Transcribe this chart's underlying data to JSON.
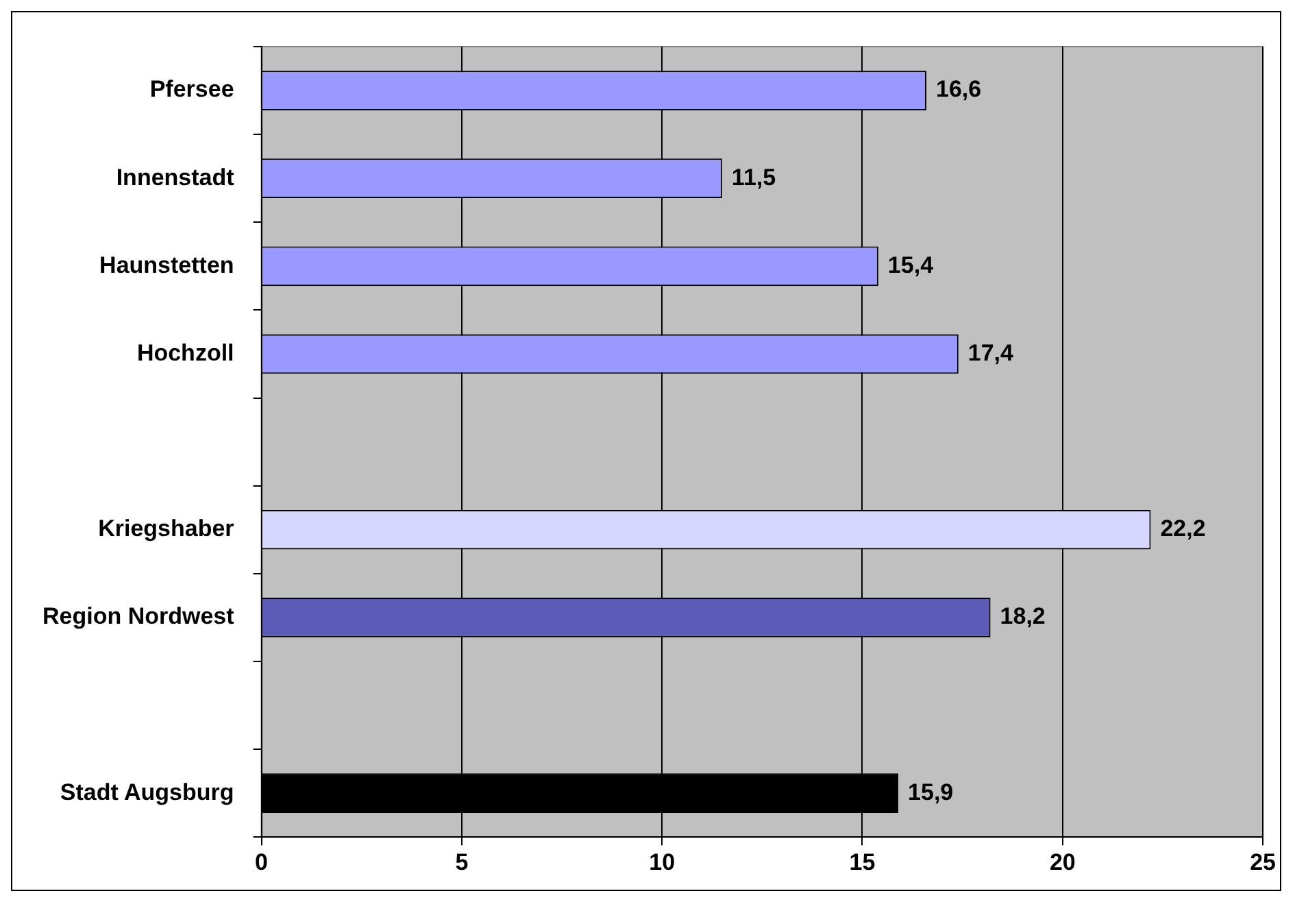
{
  "chart_data": {
    "type": "bar",
    "orientation": "horizontal",
    "categories": [
      "Pfersee",
      "Innenstadt",
      "Haunstetten",
      "Hochzoll",
      null,
      "Kriegshaber",
      "Region Nordwest",
      null,
      "Stadt Augsburg"
    ],
    "values": [
      16.6,
      11.5,
      15.4,
      17.4,
      null,
      22.2,
      18.2,
      null,
      15.9
    ],
    "colors": [
      "#9999ff",
      "#9999ff",
      "#9999ff",
      "#9999ff",
      "#9999ff",
      "#d6d6ff",
      "#5c5cb8",
      "#9999ff",
      "#000000"
    ],
    "value_labels": [
      "16,6",
      "11,5",
      "15,4",
      "17,4",
      null,
      "22,2",
      "18,2",
      null,
      "15,9"
    ],
    "xlim": [
      0,
      25
    ],
    "xticks": [
      0,
      5,
      10,
      15,
      20,
      25
    ],
    "grid": "x",
    "legend": false
  }
}
